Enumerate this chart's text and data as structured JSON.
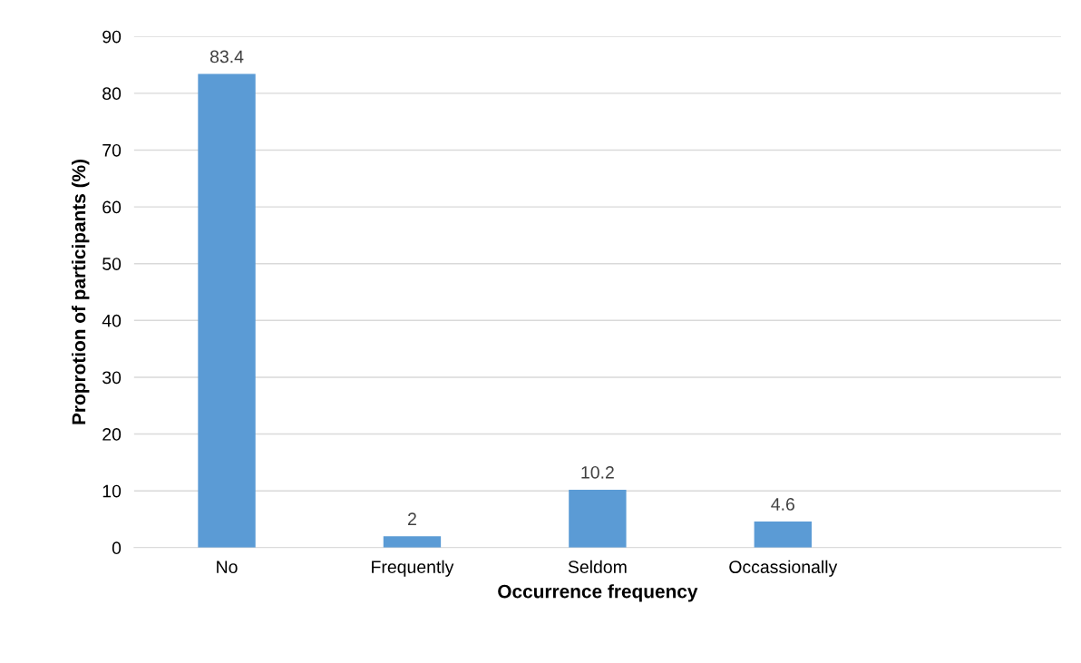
{
  "chart_data": {
    "type": "bar",
    "xlabel": "Occurrence frequency",
    "ylabel": "Proprotion of participants (%)",
    "categories": [
      "No",
      "Frequently",
      "Seldom",
      "Occassionally",
      null
    ],
    "values": [
      83.4,
      2,
      10.2,
      4.6,
      null
    ],
    "color": "#5b9bd5",
    "ylim": [
      0,
      90
    ],
    "yticks": [
      0,
      10,
      20,
      30,
      40,
      50,
      60,
      70,
      80,
      90
    ],
    "grid": "y",
    "data_labels": true,
    "legend": false
  }
}
